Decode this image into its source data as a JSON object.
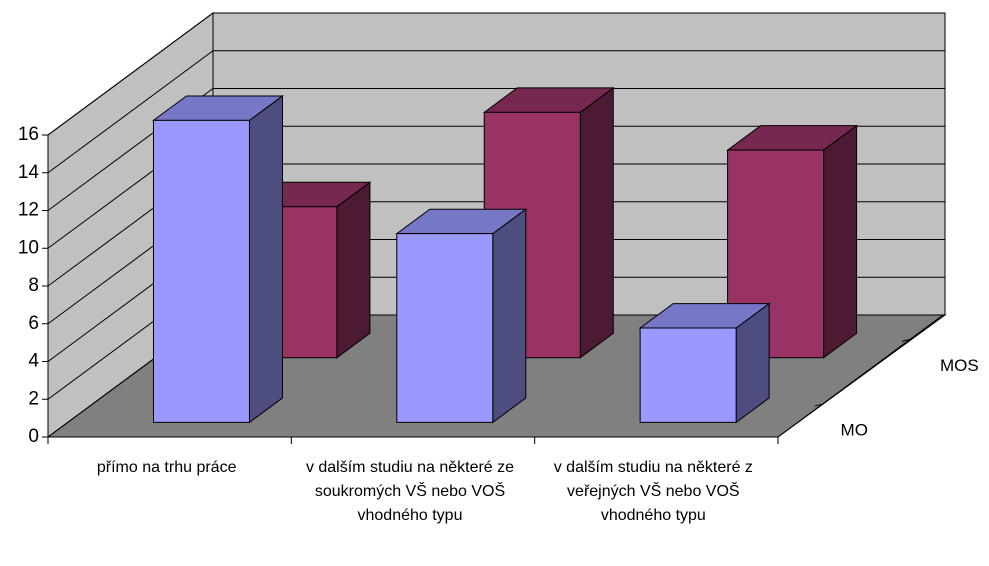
{
  "chart_data": {
    "type": "bar3d",
    "categories": [
      "přímo na trhu práce",
      "v dalším studiu na některé ze soukromých VŠ nebo VOŠ vhodného typu",
      "v dalším studiu na některé z veřejných VŠ nebo VOŠ vhodného typu"
    ],
    "series": [
      {
        "name": "MO",
        "color": "#9999ff",
        "values": [
          16,
          10,
          5
        ]
      },
      {
        "name": "MOS",
        "color": "#993366",
        "values": [
          8,
          13,
          11
        ]
      }
    ],
    "ylim": [
      0,
      16
    ],
    "yticks": [
      0,
      2,
      4,
      6,
      8,
      10,
      12,
      14,
      16
    ],
    "grid": true
  }
}
